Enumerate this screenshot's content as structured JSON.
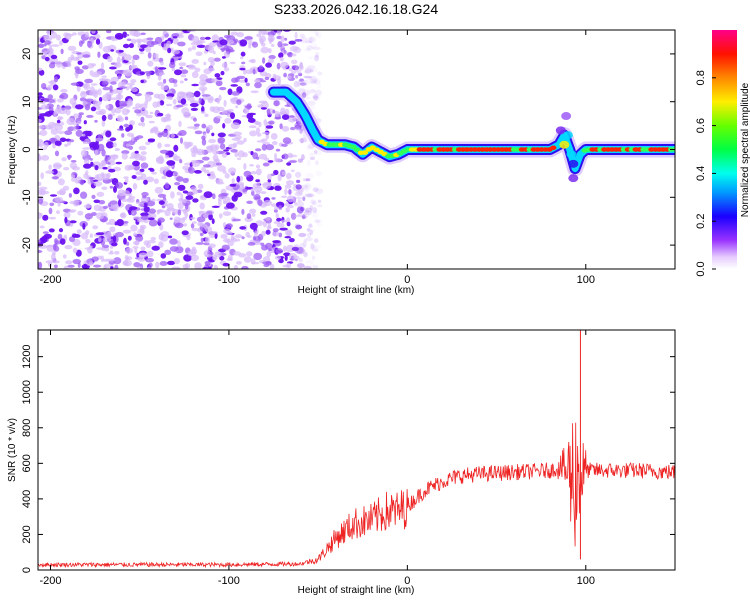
{
  "figure": {
    "title": "S233.2026.042.16.18.G24"
  },
  "chart_data": [
    {
      "type": "heatmap",
      "name": "spectrogram",
      "xlabel": "Height of straight line (km)",
      "ylabel": "Frequency (Hz)",
      "xlim": [
        -207,
        150
      ],
      "ylim": [
        -25,
        25
      ],
      "xticks": [
        -200,
        -100,
        0,
        100
      ],
      "yticks": [
        -20,
        -10,
        0,
        10,
        20
      ],
      "noise_region_x": [
        -207,
        -57
      ],
      "signal_track": {
        "x": [
          -75,
          -68,
          -62,
          -57,
          -53,
          -50,
          -45,
          -40,
          -35,
          -30,
          -25,
          -20,
          -15,
          -10,
          -5,
          0,
          10,
          20,
          40,
          60,
          75,
          80,
          85,
          88,
          91,
          94,
          97,
          100,
          110,
          130,
          150
        ],
        "freq": [
          12,
          12,
          10,
          7,
          4,
          2,
          1,
          1,
          1,
          0.5,
          -1,
          0.5,
          -0.5,
          -1.5,
          -1,
          0,
          0,
          0,
          0,
          0,
          0,
          0,
          1,
          3,
          0,
          -4,
          -1,
          0,
          0,
          0,
          0
        ]
      },
      "colorbar": {
        "label": "Normalized spectral amplitude",
        "ticks": [
          "0.0",
          "0.2",
          "0.4",
          "0.6",
          "0.8"
        ],
        "range": [
          0,
          1
        ]
      }
    },
    {
      "type": "line",
      "name": "snr",
      "xlabel": "Height of straight line (km)",
      "ylabel": "SNR (10 * v/v)",
      "xlim": [
        -207,
        150
      ],
      "ylim": [
        0,
        1350
      ],
      "xticks": [
        -200,
        -100,
        0,
        100
      ],
      "yticks": [
        0,
        200,
        400,
        600,
        800,
        1000,
        1200
      ],
      "series": [
        {
          "name": "SNR",
          "color": "#ee2222",
          "x": [
            -207,
            -150,
            -100,
            -60,
            -50,
            -40,
            -30,
            -20,
            -12,
            -5,
            0,
            10,
            20,
            30,
            40,
            60,
            80,
            87,
            90,
            93,
            95,
            97,
            100,
            110,
            130,
            150
          ],
          "y": [
            30,
            30,
            30,
            35,
            60,
            180,
            260,
            280,
            330,
            330,
            360,
            450,
            500,
            530,
            540,
            550,
            560,
            580,
            550,
            520,
            560,
            540,
            560,
            560,
            560,
            550
          ]
        }
      ]
    }
  ],
  "colors": {
    "noise": "#7a2cf0",
    "line": "#ee2222",
    "colorbar_stops": [
      "#ffffff",
      "#cc99ff",
      "#7700ff",
      "#0000ff",
      "#00ccff",
      "#00ff88",
      "#88ff00",
      "#ffee00",
      "#ff8800",
      "#ff0000",
      "#ff0088"
    ]
  }
}
